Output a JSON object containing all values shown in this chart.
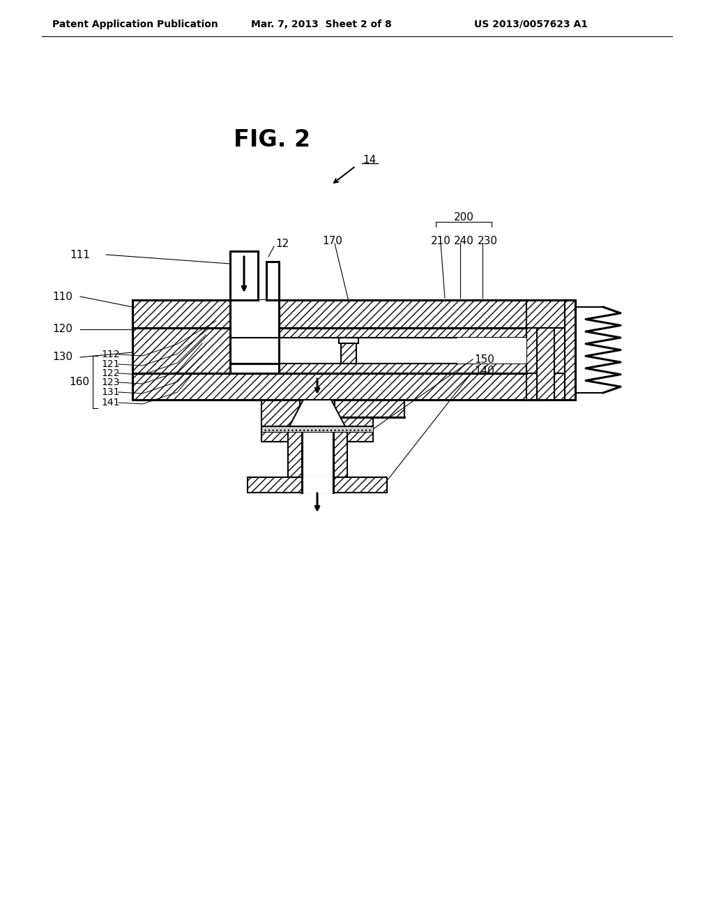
{
  "bg_color": "#ffffff",
  "title_fig": "FIG. 2",
  "header_left": "Patent Application Publication",
  "header_mid": "Mar. 7, 2013  Sheet 2 of 8",
  "header_right": "US 2013/0057623 A1",
  "label_14": "14",
  "label_12": "12",
  "label_111": "111",
  "label_110": "110",
  "label_120": "120",
  "label_130": "130",
  "label_170": "170",
  "label_200": "200",
  "label_210": "210",
  "label_240": "240",
  "label_230": "230",
  "label_150": "150",
  "label_140": "140",
  "label_160": "160",
  "label_112": "112",
  "label_121": "121",
  "label_122": "122",
  "label_123": "123",
  "label_131": "131",
  "label_141": "141",
  "line_color": "#000000"
}
